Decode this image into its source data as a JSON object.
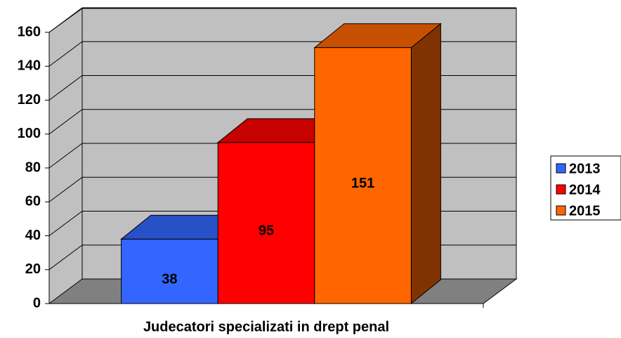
{
  "chart_data": {
    "type": "bar",
    "categories": [
      "Judecatori specializati in drept penal"
    ],
    "series": [
      {
        "name": "2013",
        "color": "#3366ff",
        "values": [
          38
        ]
      },
      {
        "name": "2014",
        "color": "#ff0000",
        "values": [
          95
        ]
      },
      {
        "name": "2015",
        "color": "#ff6600",
        "values": [
          151
        ]
      }
    ],
    "ylim": [
      0,
      160
    ],
    "yticks": [
      0,
      20,
      40,
      60,
      80,
      100,
      120,
      140,
      160
    ],
    "grid": true,
    "legend": "right"
  }
}
